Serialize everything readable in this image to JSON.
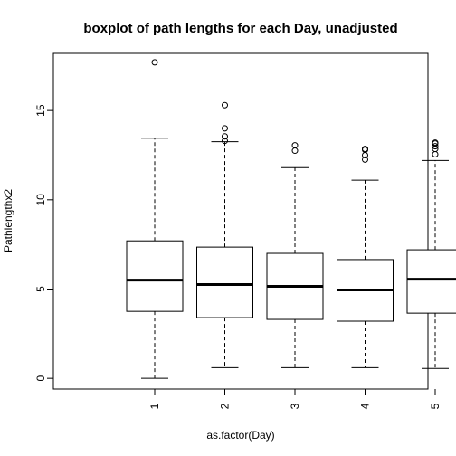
{
  "chart_data": {
    "type": "boxplot",
    "title": "boxplot of path lengths for each Day, unadjusted",
    "xlabel": "as.factor(Day)",
    "ylabel": "Pathlengthx2",
    "ylim": [
      -0.6,
      18.2
    ],
    "yticks": [
      "0",
      "5",
      "10",
      "15"
    ],
    "categories": [
      "1",
      "2",
      "3",
      "4",
      "5"
    ],
    "boxes": [
      {
        "category": "1",
        "min": 0.0,
        "q1": 3.75,
        "median": 5.5,
        "q3": 7.7,
        "max": 13.45,
        "outliers": [
          17.7
        ]
      },
      {
        "category": "2",
        "min": 0.6,
        "q1": 3.4,
        "median": 5.25,
        "q3": 7.35,
        "max": 13.25,
        "outliers": [
          13.3,
          13.55,
          14.0,
          15.3
        ]
      },
      {
        "category": "3",
        "min": 0.6,
        "q1": 3.3,
        "median": 5.15,
        "q3": 7.0,
        "max": 11.8,
        "outliers": [
          12.75,
          13.05
        ]
      },
      {
        "category": "4",
        "min": 0.6,
        "q1": 3.2,
        "median": 4.95,
        "q3": 6.65,
        "max": 11.1,
        "outliers": [
          12.25,
          12.5,
          12.8,
          12.85
        ]
      },
      {
        "category": "5",
        "min": 0.55,
        "q1": 3.65,
        "median": 5.55,
        "q3": 7.2,
        "max": 12.2,
        "outliers": [
          12.55,
          12.85,
          13.0,
          13.15,
          13.2
        ]
      }
    ],
    "grid": false,
    "legend": "none"
  }
}
